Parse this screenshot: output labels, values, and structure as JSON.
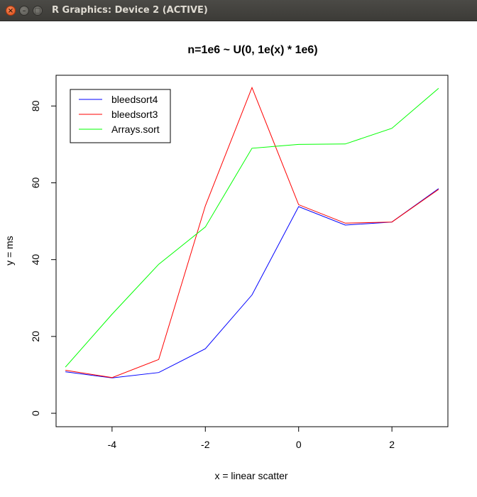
{
  "window": {
    "title": "R Graphics: Device 2 (ACTIVE)",
    "close_glyph": "×",
    "minimize_glyph": "–",
    "maximize_glyph": "□"
  },
  "chart_data": {
    "type": "line",
    "title": "n=1e6 ~ U(0, 1e(x) * 1e6)",
    "xlabel": "x = linear scatter",
    "ylabel": "y = ms",
    "xlim": [
      -5.2,
      3.2
    ],
    "ylim": [
      -3.5,
      88
    ],
    "xticks": [
      -4,
      -2,
      0,
      2
    ],
    "xtick_labels": [
      "-4",
      "-2",
      "0",
      "2"
    ],
    "yticks": [
      0,
      20,
      40,
      60,
      80
    ],
    "ytick_labels": [
      "0",
      "20",
      "40",
      "60",
      "80"
    ],
    "x": [
      -5,
      -4,
      -3,
      -2,
      -1,
      0,
      1,
      2,
      3
    ],
    "legend_position": "top-left",
    "series": [
      {
        "name": "bleedsort4",
        "color": "#0000ff",
        "values": [
          10.8,
          9.2,
          10.6,
          16.8,
          30.8,
          53.8,
          49.0,
          49.8,
          58.5
        ]
      },
      {
        "name": "bleedsort3",
        "color": "#ff0000",
        "values": [
          11.2,
          9.3,
          14.0,
          54.0,
          84.8,
          54.3,
          49.5,
          49.8,
          58.3
        ]
      },
      {
        "name": "Arrays.sort",
        "color": "#00ff00",
        "values": [
          12.0,
          25.8,
          38.8,
          48.5,
          69.0,
          70.0,
          70.1,
          74.2,
          84.6
        ]
      }
    ]
  }
}
